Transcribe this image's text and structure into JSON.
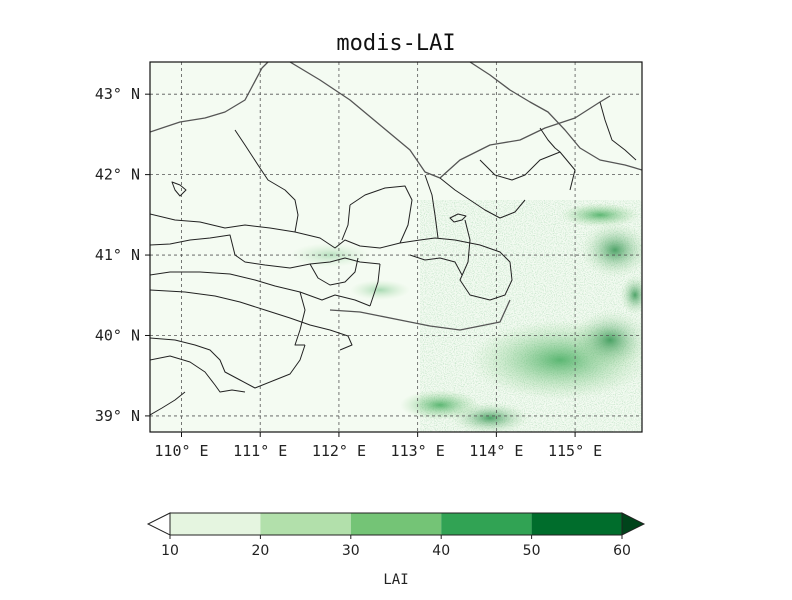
{
  "map": {
    "title": "modis-LAI",
    "lat_ticks": [
      "39° N",
      "40° N",
      "41° N",
      "42° N",
      "43° N"
    ],
    "lon_ticks": [
      "110° E",
      "111° E",
      "112° E",
      "113° E",
      "114° E",
      "115° E"
    ],
    "lat_range": [
      38.8,
      43.4
    ],
    "lon_range": [
      109.6,
      115.85
    ],
    "lat_values": [
      39,
      40,
      41,
      42,
      43
    ],
    "lon_values": [
      110,
      111,
      112,
      113,
      114,
      115
    ],
    "gridlines": true
  },
  "colorbar": {
    "label": "LAI",
    "tick_labels": [
      "10",
      "20",
      "30",
      "40",
      "50",
      "60"
    ],
    "bounds": [
      10,
      20,
      30,
      40,
      50,
      60
    ],
    "colors": [
      "#e5f5e0",
      "#b2e0ab",
      "#74c476",
      "#31a354",
      "#006d2c"
    ],
    "extend_low_color": "#ffffff",
    "extend_high_color": "#00441b",
    "extend": "both"
  }
}
